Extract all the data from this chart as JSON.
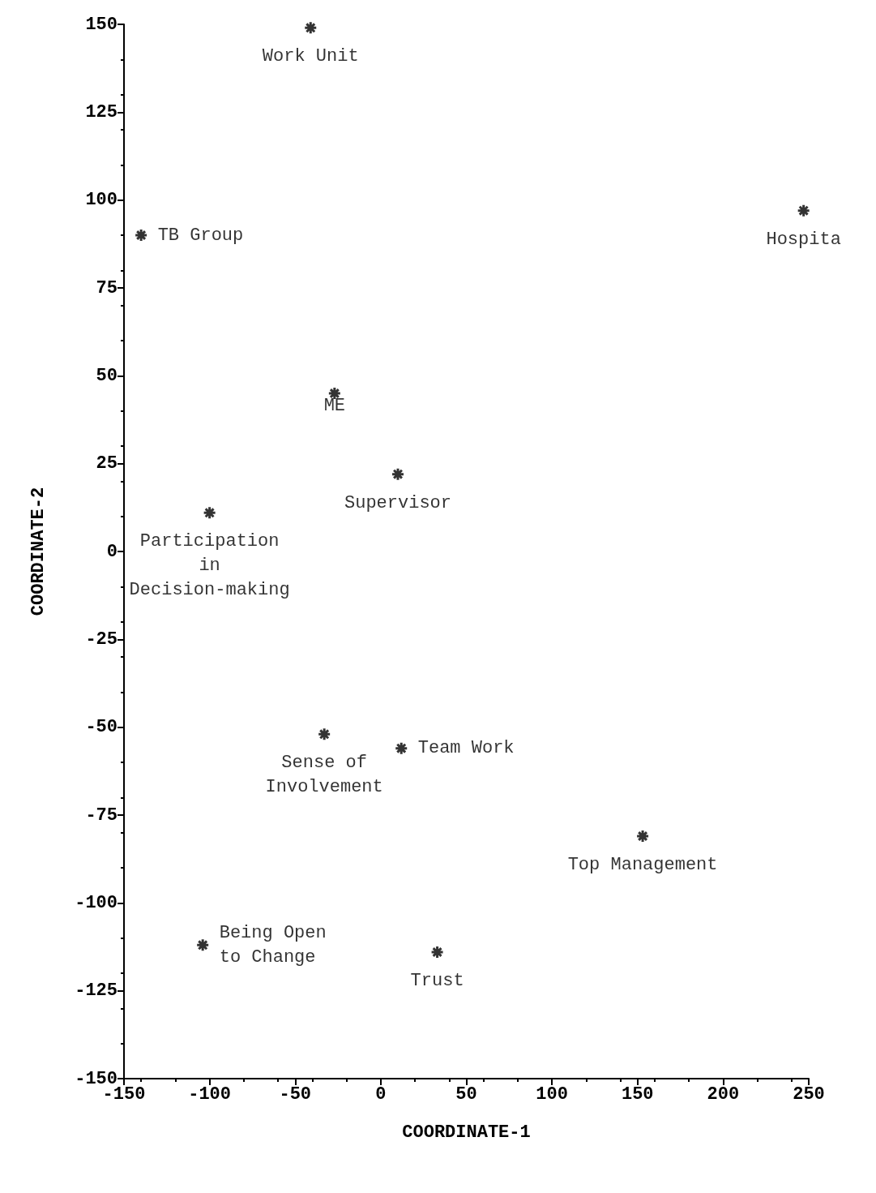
{
  "chart_data": {
    "type": "scatter",
    "xlabel": "COORDINATE-1",
    "ylabel": "COORDINATE-2",
    "xlim": [
      -150,
      250
    ],
    "ylim": [
      -150,
      150
    ],
    "xticks": [
      -150,
      -100,
      -50,
      0,
      50,
      100,
      150,
      200,
      250
    ],
    "yticks": [
      -150,
      -125,
      -100,
      -75,
      -50,
      -25,
      0,
      25,
      50,
      75,
      100,
      125,
      150
    ],
    "grid": false,
    "legend": false,
    "marker": "cross",
    "series": [
      {
        "name": "Work Unit",
        "color": "#000000",
        "x": [
          -41
        ],
        "values": [
          149
        ]
      },
      {
        "name": "TB Group",
        "color": "#000000",
        "x": [
          -140
        ],
        "values": [
          90
        ]
      },
      {
        "name": "Hospita",
        "color": "#000000",
        "x": [
          247
        ],
        "values": [
          97
        ]
      },
      {
        "name": "ME",
        "color": "#000000",
        "x": [
          -27
        ],
        "values": [
          45
        ]
      },
      {
        "name": "Supervisor",
        "color": "#000000",
        "x": [
          10
        ],
        "values": [
          22
        ]
      },
      {
        "name": "Participation\nin\nDecision-making",
        "color": "#000000",
        "x": [
          -100
        ],
        "values": [
          11
        ]
      },
      {
        "name": "Sense of\nInvolvement",
        "color": "#000000",
        "x": [
          -33
        ],
        "values": [
          -52
        ]
      },
      {
        "name": "Team Work",
        "color": "#000000",
        "x": [
          12
        ],
        "values": [
          -56
        ]
      },
      {
        "name": "Top Management",
        "color": "#000000",
        "x": [
          153
        ],
        "values": [
          -81
        ]
      },
      {
        "name": "Being Open\nto Change",
        "color": "#000000",
        "x": [
          -104
        ],
        "values": [
          -112
        ]
      },
      {
        "name": "Trust",
        "color": "#000000",
        "x": [
          33
        ],
        "values": [
          -114
        ]
      }
    ]
  }
}
